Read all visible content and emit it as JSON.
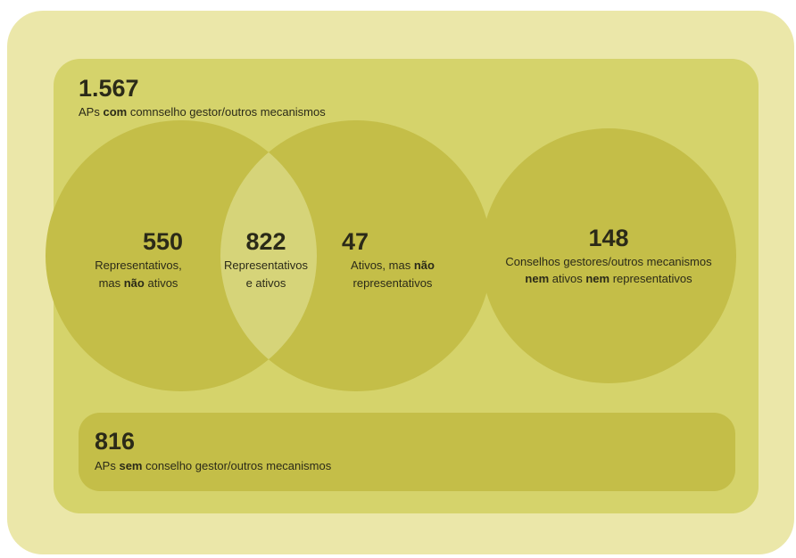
{
  "header": {
    "value": "1.567",
    "caption": [
      "APs ",
      "com",
      " comnselho gestor/outros mecanismos"
    ]
  },
  "circles": [
    {
      "value": "550",
      "lines": [
        [
          "Representativos,"
        ],
        [
          "mas ",
          "não",
          " ativos"
        ]
      ]
    },
    {
      "value": "822",
      "lines": [
        [
          "Representativos"
        ],
        [
          "e ativos"
        ]
      ]
    },
    {
      "value": "47",
      "lines": [
        [
          "Ativos, mas ",
          "não"
        ],
        [
          "representativos"
        ]
      ]
    },
    {
      "value": "148",
      "lines": [
        [
          "Conselhos gestores/outros mecanismos"
        ],
        [
          "nem",
          " ativos ",
          "nem",
          " representativos"
        ]
      ]
    }
  ],
  "footer": {
    "value": "816",
    "caption": [
      "APs ",
      "sem",
      " conselho gestor/outros mecanismos"
    ]
  }
}
